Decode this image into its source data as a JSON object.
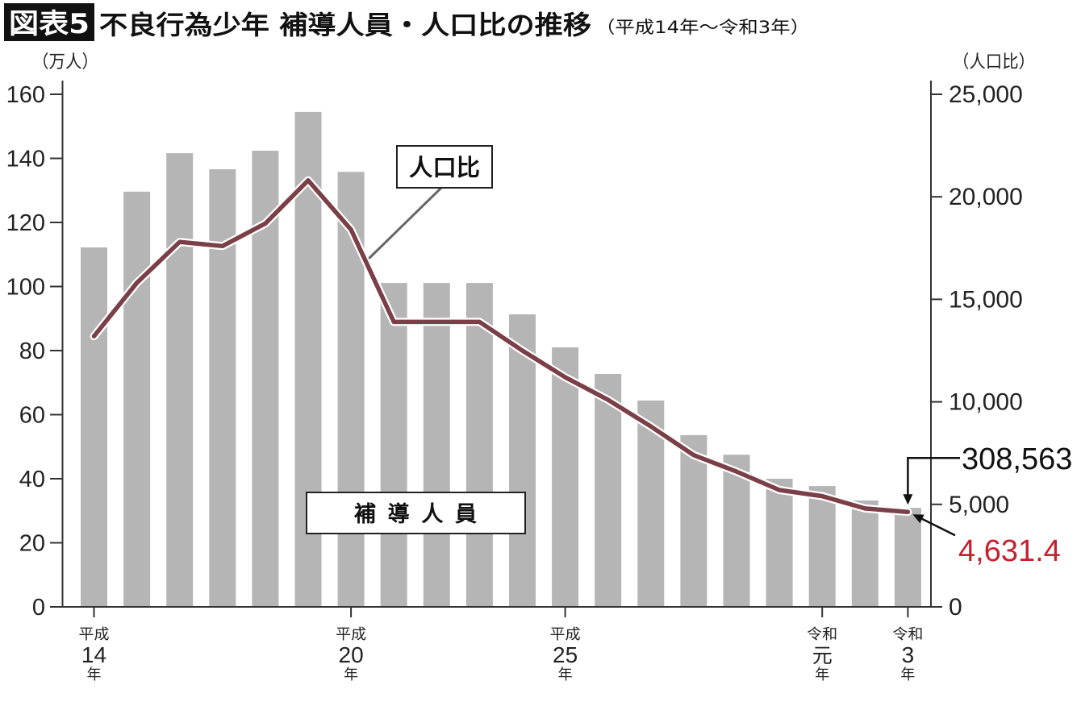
{
  "figure": {
    "label": "図表5"
  },
  "chart_data": {
    "type": "bar",
    "title": "不良行為少年 補導人員・人口比の推移",
    "subtitle": "（平成14年～令和3年）",
    "grid": false,
    "y_left": {
      "label": "（万人）",
      "min": 0,
      "max": 160,
      "ticks": [
        0,
        20,
        40,
        60,
        80,
        100,
        120,
        140,
        160
      ],
      "tick_labels": [
        "0",
        "20",
        "40",
        "60",
        "80",
        "100",
        "120",
        "140",
        "160"
      ]
    },
    "y_right": {
      "label": "（人口比）",
      "min": 0,
      "max": 25000,
      "ticks": [
        0,
        5000,
        10000,
        15000,
        20000,
        25000
      ],
      "tick_labels": [
        "0",
        "5,000",
        "10,000",
        "15,000",
        "20,000",
        "25,000"
      ]
    },
    "x_ticks": [
      {
        "index": 0,
        "era": "平成",
        "year": "14",
        "unit": "年"
      },
      {
        "index": 6,
        "era": "平成",
        "year": "20",
        "unit": "年"
      },
      {
        "index": 11,
        "era": "平成",
        "year": "25",
        "unit": "年"
      },
      {
        "index": 17,
        "era": "令和",
        "year": "元",
        "unit": "年"
      },
      {
        "index": 19,
        "era": "令和",
        "year": "3",
        "unit": "年"
      }
    ],
    "series": [
      {
        "name": "補導人員",
        "type": "bar",
        "y_axis": "left",
        "color": "#b5b5b5",
        "values": [
          112.2,
          129.6,
          141.6,
          136.6,
          142.4,
          154.5,
          135.8,
          101.1,
          101.1,
          101.1,
          91.3,
          81.0,
          72.7,
          64.4,
          53.6,
          47.5,
          40.0,
          37.7,
          33.2,
          30.9
        ]
      },
      {
        "name": "人口比",
        "type": "line",
        "y_axis": "right",
        "color": "#7b3f47",
        "values": [
          13200,
          15800,
          17800,
          17600,
          18700,
          20800,
          18400,
          13900,
          13900,
          13900,
          12500,
          11200,
          10100,
          8800,
          7400,
          6600,
          5700,
          5400,
          4800,
          4631.4
        ]
      }
    ],
    "annotations": [
      {
        "text": "308,563",
        "series": 0,
        "index": 19,
        "color": "#111111"
      },
      {
        "text": "4,631.4",
        "series": 1,
        "index": 19,
        "color": "#c8202f"
      }
    ]
  }
}
